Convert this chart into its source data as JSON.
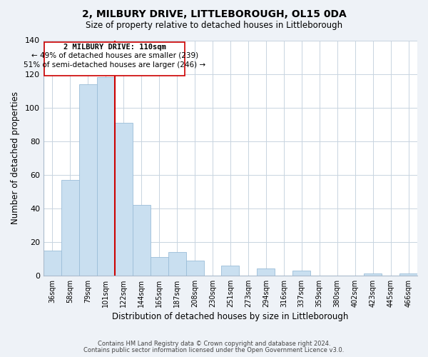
{
  "title": "2, MILBURY DRIVE, LITTLEBOROUGH, OL15 0DA",
  "subtitle": "Size of property relative to detached houses in Littleborough",
  "xlabel": "Distribution of detached houses by size in Littleborough",
  "ylabel": "Number of detached properties",
  "bar_color": "#c9dff0",
  "bar_edge_color": "#9bbdd8",
  "categories": [
    "36sqm",
    "58sqm",
    "79sqm",
    "101sqm",
    "122sqm",
    "144sqm",
    "165sqm",
    "187sqm",
    "208sqm",
    "230sqm",
    "251sqm",
    "273sqm",
    "294sqm",
    "316sqm",
    "337sqm",
    "359sqm",
    "380sqm",
    "402sqm",
    "423sqm",
    "445sqm",
    "466sqm"
  ],
  "values": [
    15,
    57,
    114,
    118,
    91,
    42,
    11,
    14,
    9,
    0,
    6,
    0,
    4,
    0,
    3,
    0,
    0,
    0,
    1,
    0,
    1
  ],
  "ylim": [
    0,
    140
  ],
  "yticks": [
    0,
    20,
    40,
    60,
    80,
    100,
    120,
    140
  ],
  "marker_label": "2 MILBURY DRIVE: 110sqm",
  "annotation_line1": "← 49% of detached houses are smaller (239)",
  "annotation_line2": "51% of semi-detached houses are larger (246) →",
  "vline_color": "#cc0000",
  "box_edge_color": "#cc0000",
  "footer1": "Contains HM Land Registry data © Crown copyright and database right 2024.",
  "footer2": "Contains public sector information licensed under the Open Government Licence v3.0.",
  "background_color": "#eef2f7",
  "plot_background_color": "#ffffff",
  "grid_color": "#c8d4e0"
}
